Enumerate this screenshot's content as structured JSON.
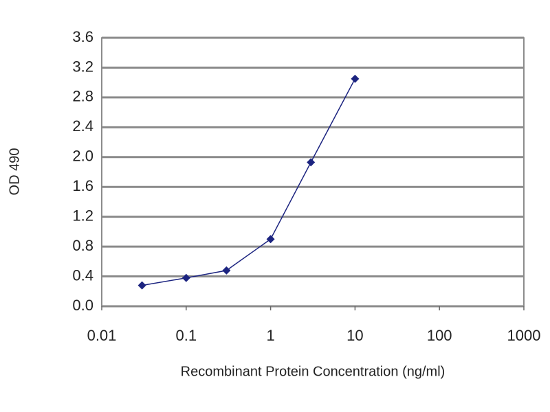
{
  "chart_data": {
    "type": "line",
    "x_label": "Recombinant Protein Concentration (ng/ml)",
    "y_label": "OD 490",
    "xscale": "log",
    "grid": true,
    "xlim": [
      0.01,
      1000
    ],
    "xticks": [
      0.01,
      0.1,
      1,
      10,
      100,
      1000
    ],
    "ylim": [
      0,
      3.6
    ],
    "yticks": [
      {
        "value": 0,
        "label": "0.0"
      },
      0.4,
      0.8,
      1.2,
      1.6,
      {
        "value": 2,
        "label": "2.0"
      },
      2.4,
      2.8,
      3.2,
      3.6
    ],
    "x": [
      0.03,
      0.1,
      0.3,
      1,
      3,
      10
    ],
    "series": [
      {
        "color": "#1c2480",
        "values": [
          0.28,
          0.38,
          0.48,
          0.9,
          1.93,
          3.05
        ]
      }
    ]
  }
}
